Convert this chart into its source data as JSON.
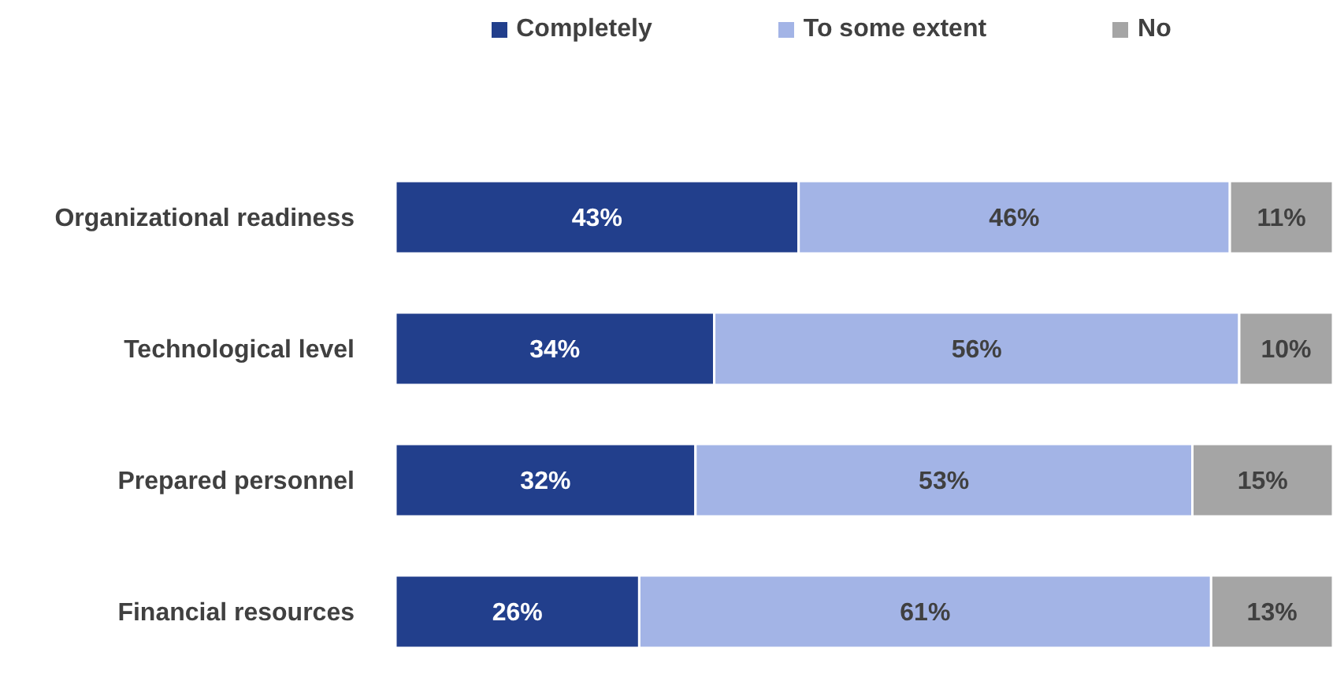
{
  "chart_data": {
    "type": "bar",
    "orientation": "horizontal",
    "stacked": true,
    "categories": [
      "Organizational readiness",
      "Technological level",
      "Prepared personnel",
      "Financial resources"
    ],
    "series": [
      {
        "name": "Completely",
        "color": "#223f8c",
        "values": [
          43,
          34,
          32,
          26
        ],
        "value_labels": [
          "43%",
          "34%",
          "32%",
          "26%"
        ]
      },
      {
        "name": "To some extent",
        "color": "#a3b4e6",
        "values": [
          46,
          56,
          53,
          61
        ],
        "value_labels": [
          "46%",
          "56%",
          "53%",
          "61%"
        ]
      },
      {
        "name": "No",
        "color": "#a5a5a5",
        "values": [
          11,
          10,
          15,
          13
        ],
        "value_labels": [
          "11%",
          "10%",
          "15%",
          "13%"
        ]
      }
    ],
    "xlim": [
      0,
      100
    ],
    "tick_labels": "y",
    "legend": "top"
  }
}
